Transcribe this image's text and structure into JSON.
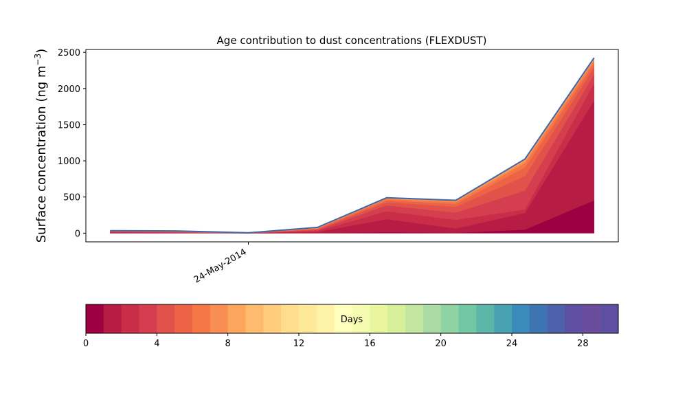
{
  "chart_data": {
    "type": "area",
    "stacked": true,
    "title": "Age contribution to dust concentrations (FLEXDUST)",
    "ylabel": "Surface concentration (ng m",
    "ylabel_superscript": "−3",
    "ylabel_close": ")",
    "ylim": [
      -120,
      2540
    ],
    "y_ticks": [
      0,
      500,
      1000,
      1500,
      2000,
      2500
    ],
    "x_ticks": [
      {
        "value": 2.0,
        "label": "24-May-2014"
      }
    ],
    "x": [
      0,
      1,
      2,
      3,
      4,
      5,
      6,
      7
    ],
    "x_domain": [
      -0.35,
      7.35
    ],
    "grid": false,
    "legend": "none",
    "colorbar": {
      "label": "Days",
      "min": 0,
      "max": 30,
      "ticks": [
        0,
        4,
        8,
        12,
        16,
        20,
        24,
        28
      ],
      "colors": [
        "#9e0142",
        "#b71c44",
        "#c92d48",
        "#d53e4f",
        "#e1524a",
        "#ec6445",
        "#f57748",
        "#f98e52",
        "#fca55d",
        "#feba6e",
        "#fecc7b",
        "#fedd8d",
        "#fee99a",
        "#fff3aa",
        "#ffffbe",
        "#f5fbb0",
        "#e9f69d",
        "#d7ef9b",
        "#c3e79e",
        "#aadca4",
        "#8fd2a4",
        "#74c7a5",
        "#5db7a9",
        "#48a2b2",
        "#3a8bbb",
        "#3f74b2",
        "#4d62aa",
        "#5e4fa2",
        "#6a4c9c",
        "#5e4fa2"
      ]
    },
    "totals": [
      35,
      30,
      5,
      80,
      490,
      455,
      1025,
      2425
    ],
    "series": [
      {
        "values": [
          5,
          3,
          0,
          2,
          15,
          5,
          50,
          455
        ]
      },
      {
        "values": [
          5,
          3,
          0,
          15,
          180,
          60,
          230,
          1380
        ]
      },
      {
        "values": [
          5,
          3,
          0,
          15,
          110,
          120,
          50,
          240
        ]
      },
      {
        "values": [
          5,
          3,
          1,
          13,
          80,
          100,
          260,
          120
        ]
      },
      {
        "values": [
          4,
          4,
          1,
          10,
          45,
          80,
          200,
          95
        ]
      },
      {
        "values": [
          3,
          4,
          1,
          8,
          25,
          40,
          120,
          55
        ]
      },
      {
        "values": [
          3,
          3,
          1,
          6,
          20,
          25,
          60,
          40
        ]
      },
      {
        "values": [
          2,
          3,
          1,
          4,
          10,
          15,
          30,
          25
        ]
      },
      {
        "values": [
          2,
          2,
          0,
          3,
          5,
          10,
          20,
          15
        ]
      },
      {
        "values": [
          1,
          2,
          0,
          4,
          0,
          0,
          5,
          0
        ]
      }
    ]
  }
}
